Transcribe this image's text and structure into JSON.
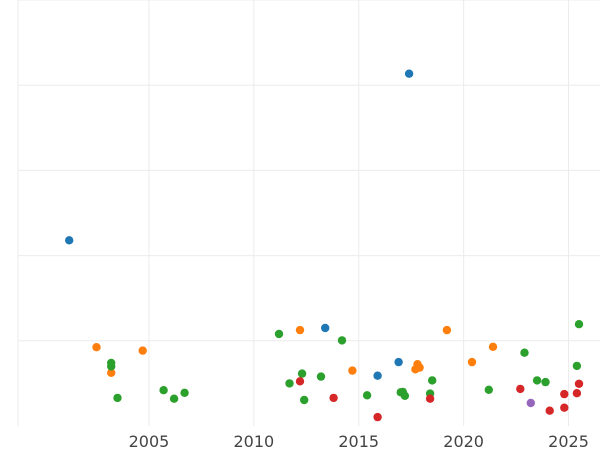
{
  "chart_data": {
    "type": "scatter",
    "title": "",
    "xlabel": "",
    "ylabel": "",
    "xlim": [
      1997.9,
      2026.5
    ],
    "ylim": [
      0,
      1
    ],
    "xticks": [
      2005,
      2010,
      2015,
      2020,
      2025
    ],
    "yticks": [
      0.2,
      0.4,
      0.6,
      0.8,
      1.0
    ],
    "grid": true,
    "legend": "none",
    "point_colors": {
      "blue": "#1f77b4",
      "orange": "#ff7f0e",
      "green": "#2ca02c",
      "red": "#d62728",
      "purple": "#9467bd"
    },
    "series": [
      {
        "color": "blue",
        "points": [
          [
            2001.2,
            0.436
          ],
          [
            2013.4,
            0.23
          ],
          [
            2015.9,
            0.118
          ],
          [
            2016.9,
            0.15
          ],
          [
            2017.4,
            0.827
          ]
        ]
      },
      {
        "color": "orange",
        "points": [
          [
            2002.5,
            0.185
          ],
          [
            2003.2,
            0.125
          ],
          [
            2004.7,
            0.177
          ],
          [
            2012.2,
            0.225
          ],
          [
            2014.7,
            0.13
          ],
          [
            2017.7,
            0.133
          ],
          [
            2017.8,
            0.145
          ],
          [
            2017.9,
            0.137
          ],
          [
            2019.2,
            0.225
          ],
          [
            2020.4,
            0.15
          ],
          [
            2021.4,
            0.186
          ]
        ]
      },
      {
        "color": "green",
        "points": [
          [
            2003.2,
            0.14
          ],
          [
            2003.2,
            0.148
          ],
          [
            2003.5,
            0.066
          ],
          [
            2005.7,
            0.084
          ],
          [
            2006.2,
            0.064
          ],
          [
            2006.7,
            0.078
          ],
          [
            2011.2,
            0.216
          ],
          [
            2011.7,
            0.1
          ],
          [
            2012.3,
            0.123
          ],
          [
            2012.4,
            0.061
          ],
          [
            2013.2,
            0.116
          ],
          [
            2014.2,
            0.201
          ],
          [
            2015.4,
            0.072
          ],
          [
            2017.0,
            0.079
          ],
          [
            2017.1,
            0.08
          ],
          [
            2017.2,
            0.071
          ],
          [
            2018.4,
            0.076
          ],
          [
            2018.5,
            0.107
          ],
          [
            2021.2,
            0.085
          ],
          [
            2022.9,
            0.172
          ],
          [
            2023.5,
            0.107
          ],
          [
            2023.9,
            0.103
          ],
          [
            2025.4,
            0.141
          ],
          [
            2025.5,
            0.239
          ]
        ]
      },
      {
        "color": "red",
        "points": [
          [
            2012.2,
            0.105
          ],
          [
            2013.8,
            0.066
          ],
          [
            2015.9,
            0.021
          ],
          [
            2018.4,
            0.064
          ],
          [
            2022.7,
            0.087
          ],
          [
            2024.1,
            0.036
          ],
          [
            2024.8,
            0.075
          ],
          [
            2024.8,
            0.043
          ],
          [
            2025.4,
            0.077
          ],
          [
            2025.5,
            0.099
          ]
        ]
      },
      {
        "color": "purple",
        "points": [
          [
            2023.2,
            0.054
          ]
        ]
      }
    ]
  }
}
